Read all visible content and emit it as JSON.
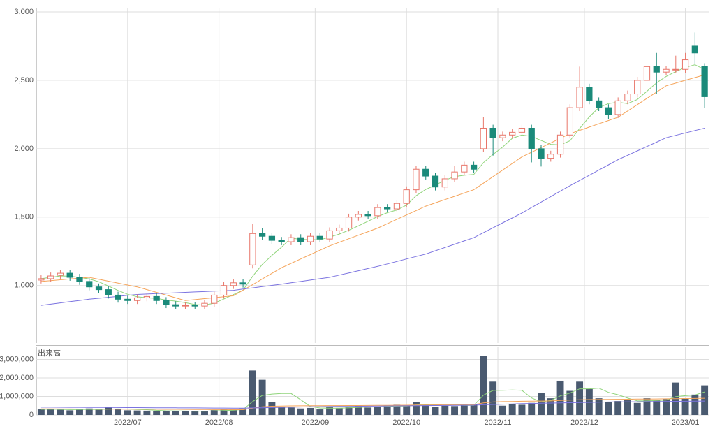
{
  "chart_data": {
    "type": "candlestick",
    "xlim": [
      -0.5,
      69.5
    ],
    "xticks": [
      {
        "value": 9,
        "label": "2022/07"
      },
      {
        "value": 18.5,
        "label": "2022/08"
      },
      {
        "value": 28.5,
        "label": "2022/09"
      },
      {
        "value": 38,
        "label": "2022/10"
      },
      {
        "value": 47.5,
        "label": "2022/11"
      },
      {
        "value": 56.5,
        "label": "2022/12"
      },
      {
        "value": 67,
        "label": "2023/01"
      }
    ],
    "ylim": [
      580,
      3000
    ],
    "yticks": [
      {
        "value": 1000,
        "label": "1,000"
      },
      {
        "value": 1500,
        "label": "1,500"
      },
      {
        "value": 2000,
        "label": "2,000"
      },
      {
        "value": 2500,
        "label": "2,500"
      },
      {
        "value": 3000,
        "label": "3,000"
      }
    ],
    "grid": true,
    "up_color": "#e8766a",
    "down_color": "#1a8a7a",
    "open": [
      1040,
      1050,
      1075,
      1090,
      1060,
      1030,
      990,
      970,
      930,
      900,
      890,
      910,
      920,
      890,
      860,
      850,
      855,
      850,
      870,
      930,
      1000,
      1020,
      1150,
      1380,
      1360,
      1330,
      1320,
      1350,
      1320,
      1360,
      1340,
      1400,
      1420,
      1500,
      1520,
      1510,
      1570,
      1560,
      1600,
      1700,
      1850,
      1800,
      1720,
      1780,
      1830,
      1880,
      2000,
      2150,
      2080,
      2100,
      2120,
      2150,
      2000,
      1930,
      1960,
      2100,
      2300,
      2450,
      2350,
      2300,
      2250,
      2350,
      2400,
      2500,
      2600,
      2560,
      2580,
      2580,
      2750,
      2600
    ],
    "high": [
      1075,
      1095,
      1115,
      1115,
      1085,
      1055,
      1015,
      995,
      955,
      925,
      935,
      945,
      945,
      915,
      885,
      880,
      880,
      895,
      955,
      1025,
      1045,
      1045,
      1450,
      1420,
      1385,
      1355,
      1375,
      1375,
      1385,
      1385,
      1425,
      1445,
      1525,
      1545,
      1545,
      1595,
      1595,
      1625,
      1725,
      1875,
      1875,
      1825,
      1805,
      1875,
      1905,
      1905,
      2230,
      2175,
      2125,
      2145,
      2175,
      2175,
      2025,
      1985,
      2125,
      2325,
      2600,
      2475,
      2375,
      2325,
      2375,
      2425,
      2525,
      2625,
      2700,
      2605,
      2680,
      2700,
      2850,
      2625
    ],
    "low": [
      1015,
      1025,
      1050,
      1035,
      1005,
      965,
      945,
      905,
      875,
      865,
      865,
      885,
      865,
      835,
      825,
      825,
      825,
      825,
      845,
      905,
      975,
      985,
      1125,
      1335,
      1305,
      1295,
      1295,
      1295,
      1295,
      1315,
      1315,
      1375,
      1395,
      1475,
      1485,
      1485,
      1535,
      1535,
      1575,
      1675,
      1775,
      1695,
      1695,
      1755,
      1805,
      1825,
      1975,
      1950,
      2055,
      2075,
      2095,
      1900,
      1870,
      1905,
      1935,
      2075,
      2275,
      2325,
      2275,
      2215,
      2225,
      2325,
      2375,
      2475,
      2400,
      2535,
      2555,
      2555,
      2620,
      2300
    ],
    "close": [
      1050,
      1070,
      1090,
      1060,
      1030,
      990,
      970,
      930,
      900,
      890,
      910,
      920,
      890,
      860,
      850,
      855,
      850,
      870,
      930,
      1000,
      1020,
      1010,
      1380,
      1360,
      1330,
      1320,
      1350,
      1320,
      1360,
      1340,
      1400,
      1420,
      1500,
      1520,
      1510,
      1570,
      1560,
      1600,
      1700,
      1850,
      1800,
      1720,
      1780,
      1830,
      1880,
      1850,
      2150,
      2080,
      2100,
      2120,
      2150,
      2000,
      1930,
      1960,
      2100,
      2300,
      2450,
      2350,
      2300,
      2250,
      2350,
      2400,
      2500,
      2600,
      2560,
      2580,
      2580,
      2650,
      2700,
      2380
    ],
    "series": [
      {
        "color": "#8fd47a",
        "values": [
          1050,
          1060,
          1070,
          1068,
          1060,
          1048,
          1028,
          996,
          964,
          936,
          918,
          910,
          906,
          894,
          886,
          875,
          861,
          857,
          871,
          901,
          934,
          966,
          1068,
          1154,
          1220,
          1280,
          1348,
          1336,
          1336,
          1334,
          1354,
          1376,
          1404,
          1436,
          1470,
          1504,
          1532,
          1552,
          1588,
          1656,
          1702,
          1734,
          1770,
          1796,
          1806,
          1812,
          1898,
          1958,
          2012,
          2076,
          2100,
          2090,
          2060,
          2032,
          2028,
          2058,
          2148,
          2232,
          2300,
          2330,
          2340,
          2330,
          2360,
          2420,
          2482,
          2528,
          2564,
          2594,
          2614,
          2578
        ]
      },
      {
        "color": "#f5a45a",
        "values": [
          1030,
          1036,
          1042,
          1048,
          1054,
          1060,
          1046,
          1032,
          1018,
          1004,
          990,
          970,
          950,
          930,
          910,
          890,
          897,
          904,
          911,
          918,
          925,
          966,
          1007,
          1048,
          1089,
          1130,
          1162,
          1194,
          1226,
          1258,
          1290,
          1316,
          1342,
          1368,
          1394,
          1420,
          1452,
          1484,
          1516,
          1548,
          1580,
          1604,
          1628,
          1652,
          1676,
          1700,
          1748,
          1796,
          1844,
          1892,
          1940,
          1974,
          2008,
          2042,
          2076,
          2110,
          2134,
          2158,
          2182,
          2206,
          2230,
          2276,
          2322,
          2368,
          2414,
          2460,
          2480,
          2500,
          2520,
          2540
        ]
      },
      {
        "color": "#7b73e0",
        "values": [
          855,
          864,
          873,
          882,
          891,
          900,
          907,
          914,
          921,
          928,
          935,
          938,
          941,
          944,
          947,
          950,
          953,
          956,
          959,
          962,
          965,
          974,
          983,
          992,
          1001,
          1010,
          1020,
          1030,
          1040,
          1050,
          1060,
          1076,
          1092,
          1108,
          1124,
          1140,
          1158,
          1176,
          1194,
          1212,
          1230,
          1254,
          1278,
          1302,
          1326,
          1350,
          1386,
          1422,
          1458,
          1494,
          1530,
          1570,
          1610,
          1650,
          1690,
          1730,
          1768,
          1806,
          1844,
          1882,
          1920,
          1952,
          1984,
          2016,
          2048,
          2080,
          2098,
          2115,
          2133,
          2150
        ]
      }
    ],
    "volume": {
      "label": "出来高",
      "color": "#4a5a70",
      "ylim": [
        0,
        3660000
      ],
      "yticks": [
        {
          "value": 0,
          "label": "0"
        },
        {
          "value": 1000000,
          "label": "1,000,000"
        },
        {
          "value": 2000000,
          "label": "2,000,000"
        },
        {
          "value": 3000000,
          "label": "3,000,000"
        }
      ],
      "values": [
        300000,
        320000,
        280000,
        250000,
        300000,
        350000,
        280000,
        400000,
        300000,
        250000,
        240000,
        230000,
        220000,
        200000,
        210000,
        200000,
        190000,
        220000,
        260000,
        320000,
        300000,
        350000,
        2400000,
        1900000,
        700000,
        450000,
        400000,
        350000,
        380000,
        300000,
        420000,
        380000,
        450000,
        500000,
        400000,
        420000,
        500000,
        550000,
        520000,
        700000,
        600000,
        450000,
        500000,
        480000,
        550000,
        600000,
        3200000,
        1800000,
        500000,
        600000,
        550000,
        650000,
        1200000,
        900000,
        1850000,
        1300000,
        1800000,
        1400000,
        900000,
        700000,
        750000,
        800000,
        650000,
        900000,
        800000,
        850000,
        1750000,
        900000,
        1100000,
        1600000
      ],
      "series": [
        {
          "color": "#8fd47a",
          "values": [
            300000,
            310000,
            300000,
            288000,
            290000,
            300000,
            292000,
            316000,
            326000,
            316000,
            294000,
            284000,
            248000,
            228000,
            220000,
            212000,
            204000,
            204000,
            214000,
            238000,
            258000,
            290000,
            726000,
            1054000,
            1130000,
            1160000,
            1160000,
            820000,
            456000,
            376000,
            370000,
            366000,
            386000,
            410000,
            430000,
            434000,
            454000,
            474000,
            478000,
            538000,
            574000,
            564000,
            554000,
            550000,
            516000,
            516000,
            1066000,
            1326000,
            1330000,
            1350000,
            1330000,
            920000,
            700000,
            780000,
            1030000,
            1180000,
            1410000,
            1410000,
            1450000,
            1220000,
            1090000,
            910000,
            760000,
            760000,
            780000,
            800000,
            990000,
            1040000,
            1080000,
            1240000
          ]
        },
        {
          "color": "#f5a45a",
          "values": [
            330000,
            328000,
            326000,
            324000,
            322000,
            320000,
            318000,
            316000,
            314000,
            312000,
            310000,
            308000,
            305000,
            302000,
            300000,
            297000,
            294000,
            291000,
            288000,
            286000,
            284000,
            282000,
            370000,
            440000,
            470000,
            480000,
            490000,
            495000,
            500000,
            500000,
            505000,
            505000,
            510000,
            510000,
            515000,
            520000,
            520000,
            525000,
            530000,
            535000,
            540000,
            545000,
            550000,
            550000,
            555000,
            560000,
            650000,
            700000,
            720000,
            730000,
            740000,
            745000,
            750000,
            760000,
            780000,
            800000,
            820000,
            830000,
            835000,
            840000,
            845000,
            850000,
            855000,
            860000,
            865000,
            870000,
            880000,
            885000,
            890000,
            900000
          ]
        },
        {
          "color": "#7b73e0",
          "values": [
            420000,
            418000,
            415000,
            412000,
            410000,
            408000,
            405000,
            402000,
            400000,
            398000,
            395000,
            392000,
            390000,
            388000,
            385000,
            382000,
            380000,
            378000,
            375000,
            372000,
            370000,
            368000,
            380000,
            390000,
            400000,
            410000,
            420000,
            430000,
            440000,
            450000,
            455000,
            460000,
            465000,
            470000,
            475000,
            480000,
            485000,
            490000,
            495000,
            500000,
            505000,
            510000,
            515000,
            520000,
            525000,
            530000,
            550000,
            565000,
            580000,
            595000,
            610000,
            620000,
            630000,
            640000,
            650000,
            660000,
            670000,
            680000,
            690000,
            700000,
            705000,
            710000,
            715000,
            720000,
            725000,
            730000,
            735000,
            740000,
            745000,
            750000
          ]
        }
      ]
    }
  }
}
